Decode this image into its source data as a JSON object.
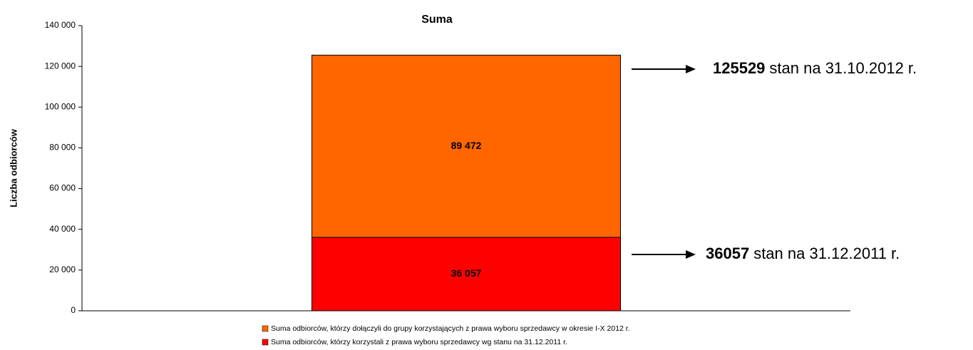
{
  "chart_data": {
    "type": "stacked_bar",
    "title": "Suma",
    "y_label": "Liczba odbiorców",
    "categories": [
      null
    ],
    "series": [
      {
        "name": "Suma odbiorców, którzy dołączyli do grupy korzystających z  prawa wyboru sprzedawcy w okresie I-X 2012 r.",
        "color": "#ff6600",
        "values": [
          89472
        ],
        "value_labels": [
          "89 472"
        ]
      },
      {
        "name": "Suma odbiorców, którzy korzystali z prawa wyboru sprzedawcy wg stanu na 31.12.2011 r.",
        "color": "#ff0000",
        "values": [
          36057
        ],
        "value_labels": [
          "36 057"
        ]
      }
    ],
    "ylim": [
      0,
      140000
    ],
    "yticks": [
      0,
      {
        "value": 20000,
        "label": "20 000"
      },
      {
        "value": 40000,
        "label": "40 000"
      },
      {
        "value": 60000,
        "label": "60 000"
      },
      {
        "value": 80000,
        "label": "80 000"
      },
      {
        "value": 100000,
        "label": "100 000"
      },
      {
        "value": 120000,
        "label": "120 000"
      },
      {
        "value": 140000,
        "label": "140 000"
      }
    ],
    "annotations": [
      {
        "value": 125529,
        "text": "stan na 31.10.2012 r."
      },
      {
        "value": 36057,
        "text": "stan na 31.12.2011 r."
      }
    ]
  }
}
